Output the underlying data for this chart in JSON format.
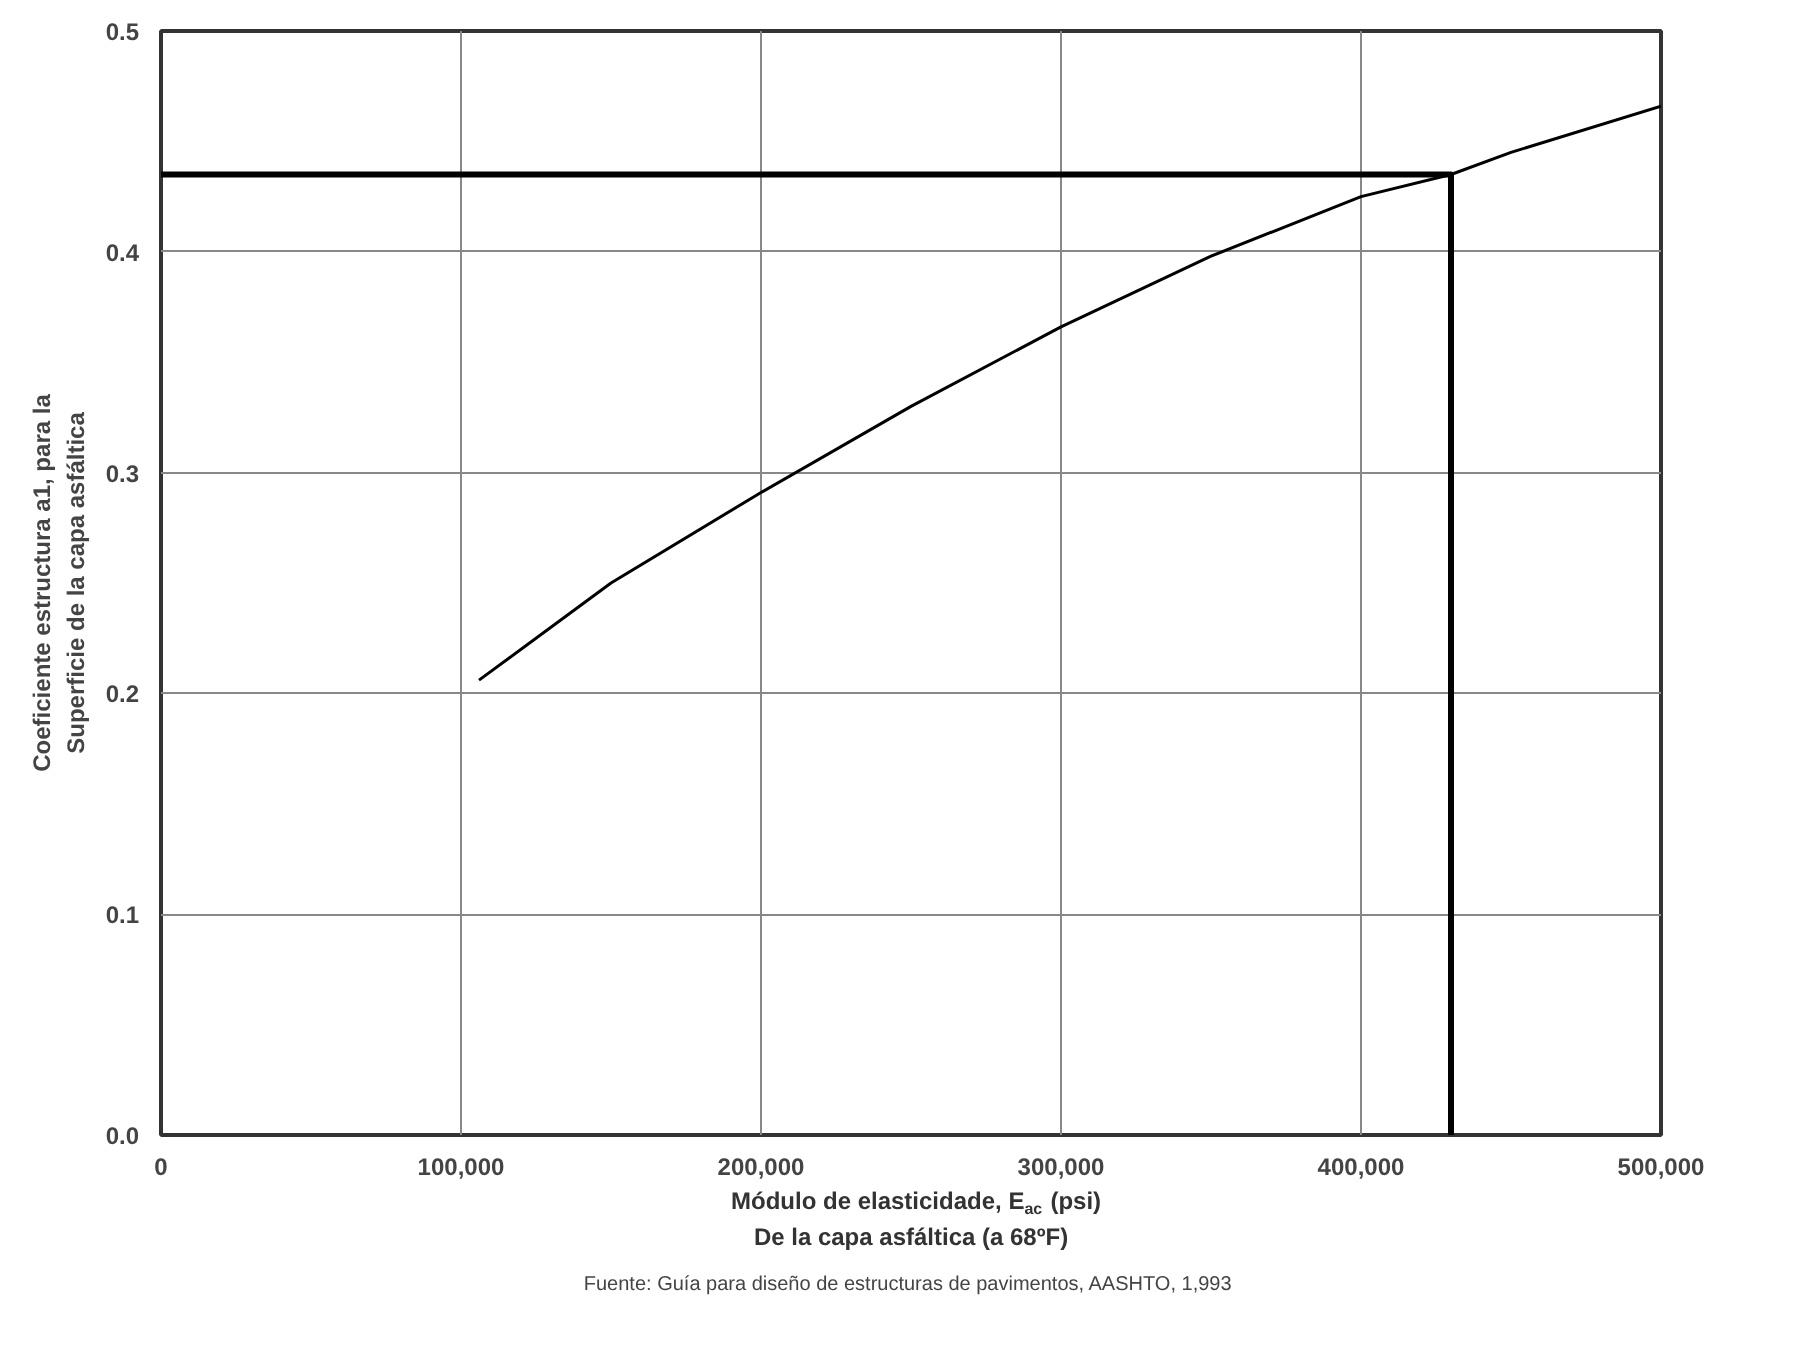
{
  "chart_data": {
    "type": "line",
    "xlabel": "Módulo de elasticidade, E$_{ac}$ (psi)\nDe la capa asfáltica (a 68ºF)",
    "ylabel": "Coeficiente estructura a1, para la\nSuperficie de la capa asfáltica",
    "annotations": [
      "Fuente:  Guía para diseño de estructuras de pavimentos, AASHTO, 1,993"
    ],
    "series": [
      {
        "color": "#000000",
        "x": [
          106000,
          150000,
          200000,
          250000,
          300000,
          350000,
          400000,
          430000,
          450000,
          500000
        ],
        "values": [
          0.206,
          0.25,
          0.291,
          0.33,
          0.366,
          0.398,
          0.425,
          0.435,
          0.445,
          0.466
        ]
      },
      {
        "color": "#000000",
        "x": [
          0,
          430000,
          430000
        ],
        "values": [
          0.435,
          0.435,
          0
        ]
      }
    ],
    "xlim": [
      0,
      500000
    ],
    "ylim": [
      0,
      0.5
    ],
    "xticks": [
      0,
      {
        "value": 100000,
        "label": "100,000"
      },
      {
        "value": 200000,
        "label": "200,000"
      },
      {
        "value": 300000,
        "label": "300,000"
      },
      {
        "value": 400000,
        "label": "400,000"
      },
      {
        "value": 500000,
        "label": "500,000"
      }
    ],
    "yticks": [
      {
        "value": 0,
        "label": "0.0"
      },
      0.1,
      0.2,
      0.3,
      0.4,
      0.5
    ],
    "grid": true,
    "marker": "none",
    "line_style": "solid"
  }
}
